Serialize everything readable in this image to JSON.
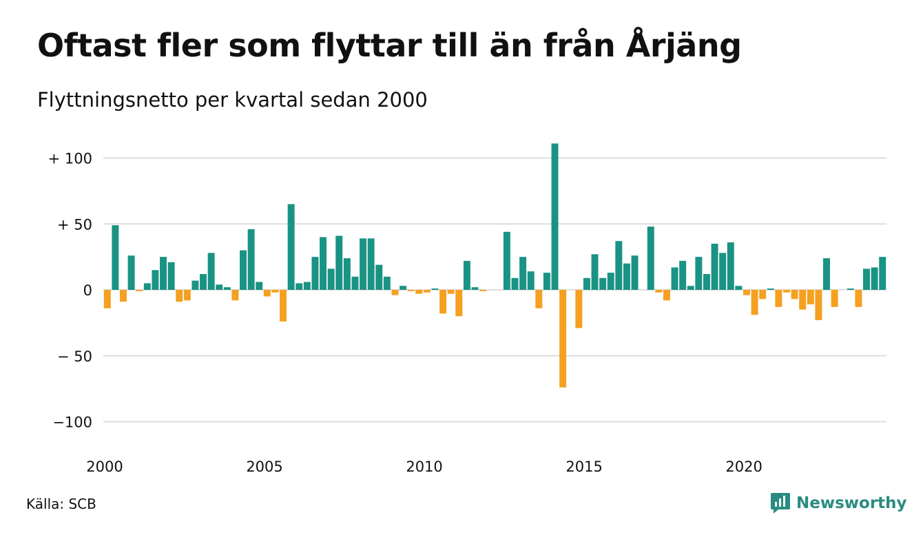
{
  "title": "Oftast fler som flyttar till än från Årjäng",
  "subtitle": "Flyttningsnetto per kvartal sedan 2000",
  "source": "Källa: SCB",
  "brand": {
    "name": "Newsworthy",
    "icon": "newsworthy-logo-icon",
    "color": "#2a8c80"
  },
  "colors": {
    "positive": "#1a9384",
    "negative": "#f5a021",
    "grid": "#dddddd",
    "text": "#111111"
  },
  "chart_data": {
    "type": "bar",
    "title": "Oftast fler som flyttar till än från Årjäng",
    "subtitle": "Flyttningsnetto per kvartal sedan 2000",
    "xlabel": "",
    "ylabel": "",
    "x_start": 2000.0,
    "x_step": 0.25,
    "xlim": [
      2000.0,
      2024.5
    ],
    "ylim": [
      -110,
      115
    ],
    "grid": true,
    "legend": "none",
    "x_ticks": [
      {
        "value": 2000,
        "label": "2000"
      },
      {
        "value": 2005,
        "label": "2005"
      },
      {
        "value": 2010,
        "label": "2010"
      },
      {
        "value": 2015,
        "label": "2015"
      },
      {
        "value": 2020,
        "label": "2020"
      }
    ],
    "y_ticks": [
      {
        "value": 100,
        "label": "+ 100"
      },
      {
        "value": 50,
        "label": "+  50"
      },
      {
        "value": 0,
        "label": "0"
      },
      {
        "value": -50,
        "label": "− 50"
      },
      {
        "value": -100,
        "label": "−100"
      }
    ],
    "values": [
      -14,
      49,
      -9,
      26,
      -1,
      5,
      15,
      25,
      21,
      -9,
      -8,
      7,
      12,
      28,
      4,
      2,
      -8,
      30,
      46,
      6,
      -5,
      -2,
      -24,
      65,
      5,
      6,
      25,
      40,
      16,
      41,
      24,
      10,
      39,
      39,
      19,
      10,
      -4,
      3,
      -1,
      -3,
      -2,
      1,
      -18,
      -3,
      -20,
      22,
      2,
      -1,
      0,
      0,
      44,
      9,
      25,
      14,
      -14,
      13,
      111,
      -74,
      0,
      -29,
      9,
      27,
      9,
      13,
      37,
      20,
      26,
      0,
      48,
      -2,
      -8,
      17,
      22,
      3,
      25,
      12,
      35,
      28,
      36,
      3,
      -4,
      -19,
      -7,
      1,
      -13,
      -2,
      -7,
      -15,
      -11,
      -23,
      24,
      -13,
      0,
      1,
      -13,
      16,
      17,
      25
    ]
  }
}
